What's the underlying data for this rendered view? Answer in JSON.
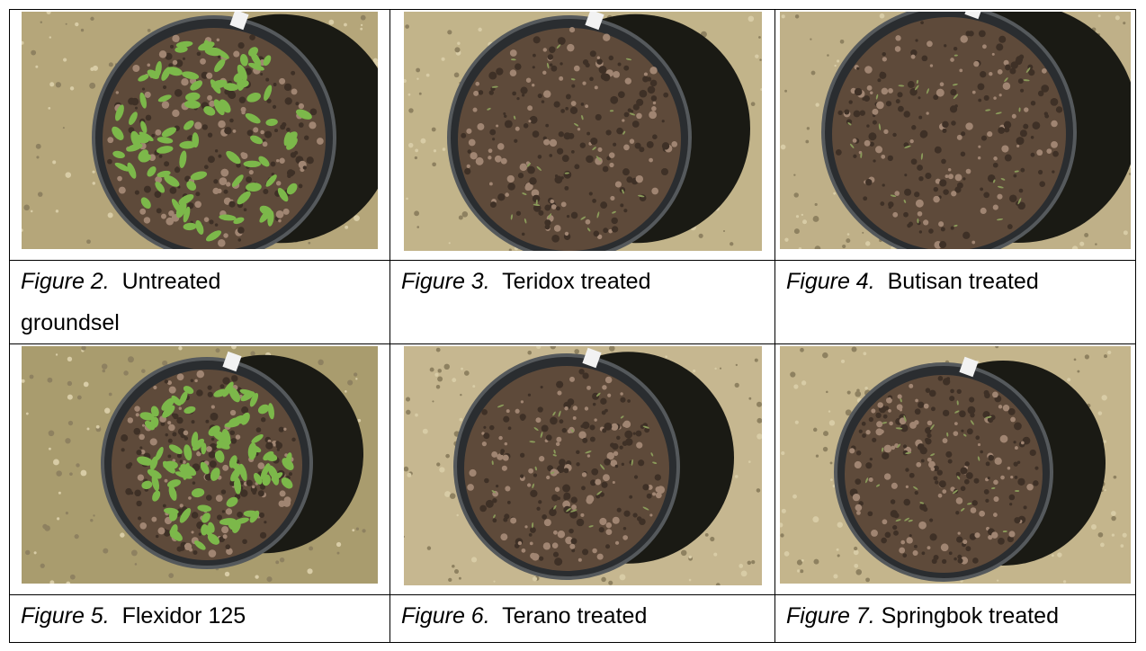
{
  "figures": [
    {
      "label": "Figure 2.",
      "caption": "Untreated groundsel"
    },
    {
      "label": "Figure 3.",
      "caption": "Teridox treated"
    },
    {
      "label": "Figure 4.",
      "caption": "Butisan treated"
    },
    {
      "label": "Figure 5.",
      "caption": "Flexidor 125"
    },
    {
      "label": "Figure 6.",
      "caption": "Terano treated"
    },
    {
      "label": "Figure 7.",
      "caption": "Springbok treated"
    }
  ]
}
